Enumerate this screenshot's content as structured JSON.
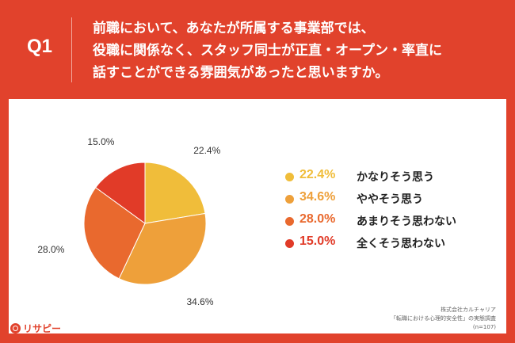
{
  "header": {
    "q_label": "Q1",
    "question_lines": [
      "前職において、あなたが所属する事業部では、",
      "役職に関係なく、スタッフ同士が正直・オープン・率直に",
      "話すことができる雰囲気があったと思いますか。"
    ]
  },
  "chart_data": {
    "type": "pie",
    "slices": [
      {
        "label": "かなりそう思う",
        "value": 22.4,
        "display": "22.4%",
        "color": "#f0bd3a"
      },
      {
        "label": "ややそう思う",
        "value": 34.6,
        "display": "34.6%",
        "color": "#eea03a"
      },
      {
        "label": "あまりそう思わない",
        "value": 28.0,
        "display": "28.0%",
        "color": "#e9692e"
      },
      {
        "label": "全くそう思わない",
        "value": 15.0,
        "display": "15.0%",
        "color": "#e13b28"
      }
    ]
  },
  "source": {
    "line1": "株式会社カルチャリア",
    "line2": "「転職における心理的安全性」の実態調査",
    "line3": "(n=107)"
  },
  "logo": {
    "text": "リサピー"
  }
}
